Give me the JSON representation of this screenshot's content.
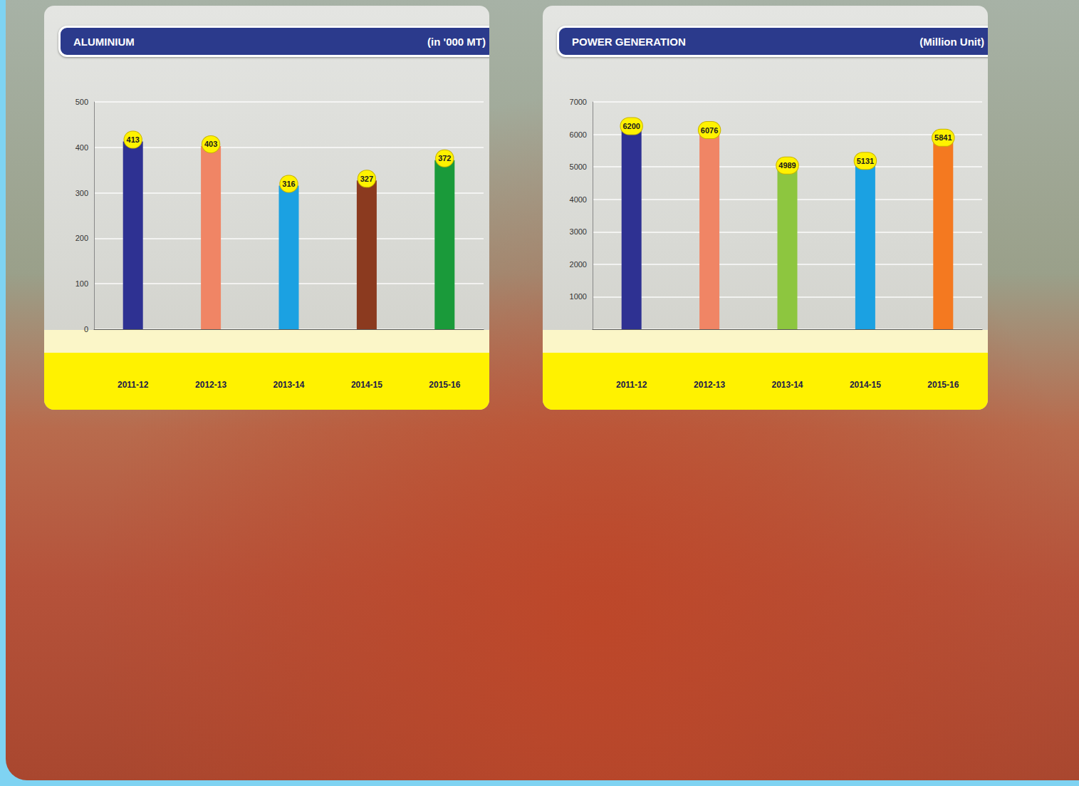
{
  "chart_data": [
    {
      "type": "bar",
      "title": "ALUMINIUM",
      "ylabel": "(in '000 MT)",
      "categories": [
        "2011-12",
        "2012-13",
        "2013-14",
        "2014-15",
        "2015-16"
      ],
      "values": [
        413,
        403,
        316,
        327,
        372
      ],
      "colors": [
        "#2e3192",
        "#f08565",
        "#1ba1e2",
        "#8b3a1f",
        "#1a9a3a"
      ],
      "ylim": [
        0,
        500
      ],
      "yticks": [
        0,
        100,
        200,
        300,
        400,
        500
      ],
      "grid": true,
      "data_labels": true
    },
    {
      "type": "bar",
      "title": "POWER GENERATION",
      "ylabel": "(Million Unit)",
      "categories": [
        "2011-12",
        "2012-13",
        "2013-14",
        "2014-15",
        "2015-16"
      ],
      "values": [
        6200,
        6076,
        4989,
        5131,
        5841
      ],
      "colors": [
        "#2e3192",
        "#f08565",
        "#8dc63f",
        "#1ba1e2",
        "#f47920"
      ],
      "ylim": [
        0,
        7000
      ],
      "yticks": [
        1000,
        2000,
        3000,
        4000,
        5000,
        6000,
        7000
      ],
      "grid": true,
      "data_labels": true
    }
  ]
}
